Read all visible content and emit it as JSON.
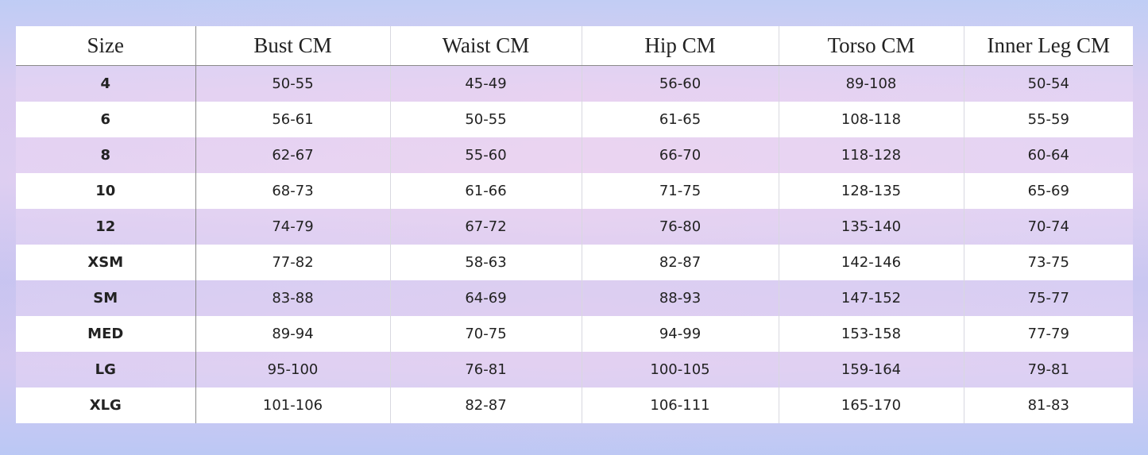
{
  "table": {
    "header": [
      "Size",
      "Bust CM",
      "Waist CM",
      "Hip CM",
      "Torso CM",
      "Inner Leg CM"
    ],
    "rows": [
      [
        "4",
        "50-55",
        "45-49",
        "56-60",
        "89-108",
        "50-54"
      ],
      [
        "6",
        "56-61",
        "50-55",
        "61-65",
        "108-118",
        "55-59"
      ],
      [
        "8",
        "62-67",
        "55-60",
        "66-70",
        "118-128",
        "60-64"
      ],
      [
        "10",
        "68-73",
        "61-66",
        "71-75",
        "128-135",
        "65-69"
      ],
      [
        "12",
        "74-79",
        "67-72",
        "76-80",
        "135-140",
        "70-74"
      ],
      [
        "XSM",
        "77-82",
        "58-63",
        "82-87",
        "142-146",
        "73-75"
      ],
      [
        "SM",
        "83-88",
        "64-69",
        "88-93",
        "147-152",
        "75-77"
      ],
      [
        "MED",
        "89-94",
        "70-75",
        "94-99",
        "153-158",
        "77-79"
      ],
      [
        "LG",
        "95-100",
        "76-81",
        "100-105",
        "159-164",
        "79-81"
      ],
      [
        "XLG",
        "101-106",
        "82-87",
        "106-111",
        "165-170",
        "81-83"
      ]
    ]
  }
}
